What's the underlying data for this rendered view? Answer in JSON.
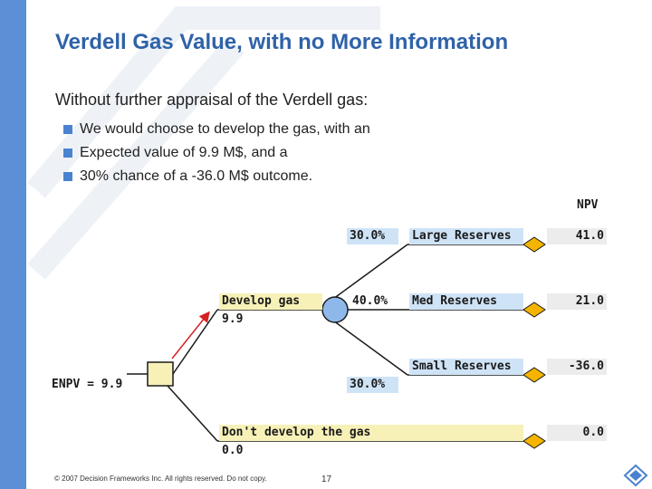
{
  "slide": {
    "title": "Verdell Gas Value, with no More Information",
    "intro": "Without further appraisal of the Verdell gas:",
    "bullets": [
      "We would choose to develop the gas, with an",
      "Expected value of 9.9 M$, and a",
      "30% chance of a -36.0 M$ outcome."
    ],
    "footer": "© 2007 Decision Frameworks Inc. All rights reserved. Do not copy.",
    "page_number": "17"
  },
  "tree": {
    "npv_header": "NPV",
    "root_label": "ENPV = 9.9",
    "develop": {
      "label": "Develop gas",
      "value": "9.9"
    },
    "dont_develop": {
      "label": "Don't develop the gas",
      "value": "0.0",
      "npv": "0.0"
    },
    "outcomes": [
      {
        "prob": "30.0%",
        "label": "Large Reserves",
        "npv": "41.0"
      },
      {
        "prob": "40.0%",
        "label": "Med Reserves",
        "npv": "21.0"
      },
      {
        "prob": "30.0%",
        "label": "Small Reserves",
        "npv": "-36.0"
      }
    ]
  },
  "colors": {
    "title": "#2f62a8",
    "bullet": "#4a82d0",
    "decision_node": "#f7f1b8",
    "chance_node": "#8fb8ea",
    "optimal_arrow": "#d62020"
  }
}
